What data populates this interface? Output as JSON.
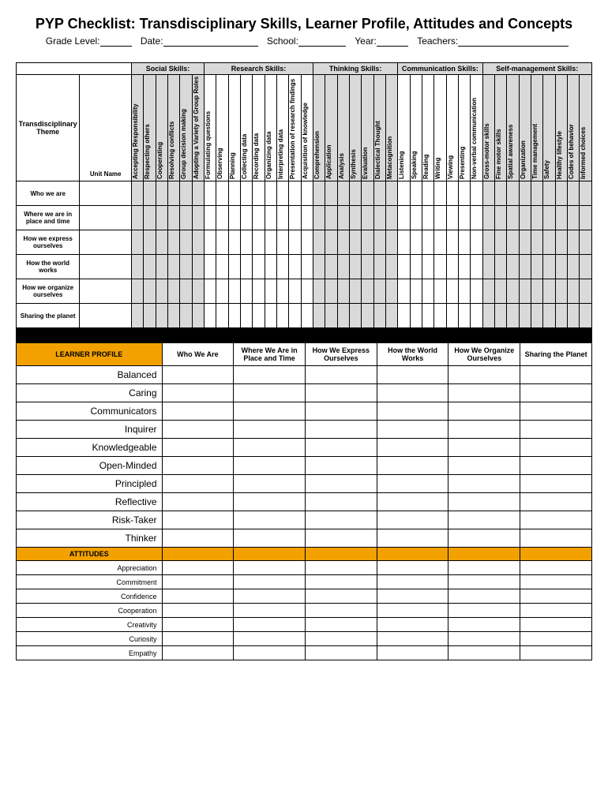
{
  "title": "PYP Checklist: Transdisciplinary Skills, Learner Profile, Attitudes and Concepts",
  "fields": {
    "grade": "Grade Level:",
    "date": "Date:",
    "school": "School:",
    "year": "Year:",
    "teachers": "Teachers:"
  },
  "skillCategories": [
    {
      "label": "Social Skills:",
      "skills": [
        "Accepting Responsibility",
        "Respecting others",
        "Cooperating",
        "Resolving conflicts",
        "Group decision making",
        "Adopting a Variety of Group Roles"
      ],
      "shaded": true
    },
    {
      "label": "Research Skills:",
      "skills": [
        "Formulating questions",
        "Observing",
        "Planning",
        "Collecting data",
        "Recording data",
        "Organizing data",
        "Interpreting data",
        "Presentation of research findings",
        "Acquisition of knowledge"
      ],
      "shaded": false
    },
    {
      "label": "Thinking Skills:",
      "skills": [
        "Comprehension",
        "Application",
        "Analysis",
        "Synthesis",
        "Evaluation",
        "Dialectical Thought",
        "Metacognition"
      ],
      "shaded": true
    },
    {
      "label": "Communication Skills:",
      "skills": [
        "Listening",
        "Speaking",
        "Reading",
        "Writing",
        "Viewing",
        "Presenting",
        "Non-verbal communication"
      ],
      "shaded": false
    },
    {
      "label": "Self-management Skills:",
      "skills": [
        "Gross-motor skills",
        "Fine motor skills",
        "Spatial awareness",
        "Organization",
        "Time management",
        "Safety",
        "Healthy lifestyle",
        "Codes of behavior",
        "Informed choices"
      ],
      "shaded": true
    }
  ],
  "themeHeader": "Transdisciplinary Theme",
  "unitHeader": "Unit Name",
  "themes": [
    "Who we are",
    "Where we are in place and time",
    "How we express ourselves",
    "How the world works",
    "How we organize ourselves",
    "Sharing the planet"
  ],
  "learnerHeader": "LEARNER PROFILE",
  "learnerCols": [
    "Who We Are",
    "Where We Are in Place and Time",
    "How We Express Ourselves",
    "How the World Works",
    "How We Organize Ourselves",
    "Sharing the Planet"
  ],
  "profiles": [
    "Balanced",
    "Caring",
    "Communicators",
    "Inquirer",
    "Knowledgeable",
    "Open-Minded",
    "Principled",
    "Reflective",
    "Risk-Taker",
    "Thinker"
  ],
  "attitudesHeader": "ATTITUDES",
  "attitudes": [
    "Appreciation",
    "Commitment",
    "Confidence",
    "Cooperation",
    "Creativity",
    "Curiosity",
    "Empathy"
  ]
}
